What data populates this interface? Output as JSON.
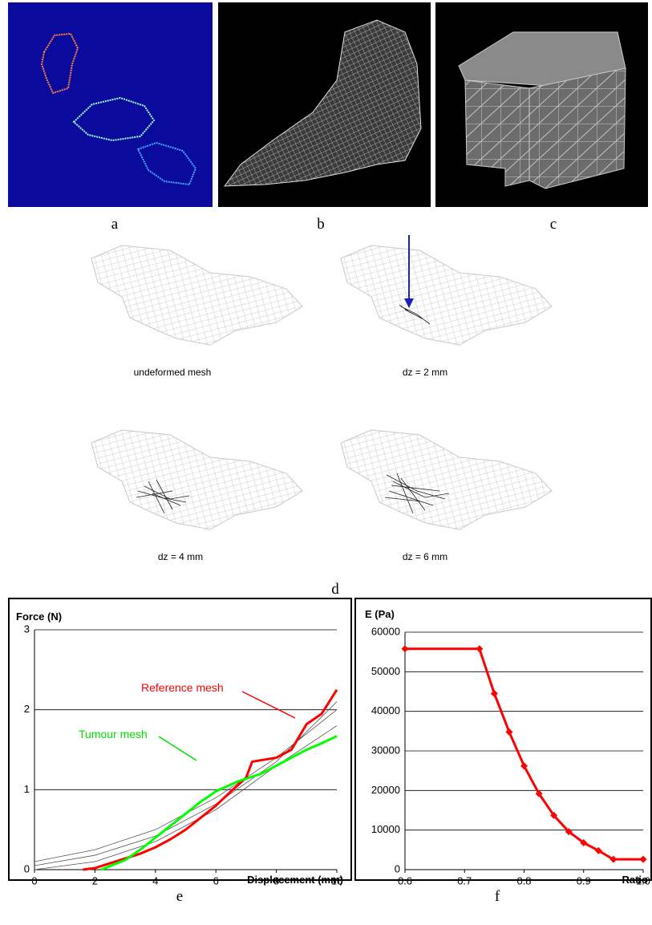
{
  "panel_labels": [
    "a",
    "b",
    "c",
    "d",
    "e",
    "f"
  ],
  "mesh_captions": [
    "undeformed mesh",
    "dz = 2 mm",
    "dz = 4 mm",
    "dz = 6 mm"
  ],
  "chart_data": [
    {
      "type": "line",
      "y_label": "Force (N)",
      "x_label": "Displacement (mm)",
      "xlim": [
        0,
        10
      ],
      "xticks": [
        0,
        2,
        4,
        6,
        8,
        10
      ],
      "ylim": [
        0,
        3
      ],
      "yticks": [
        0,
        1,
        2,
        3
      ],
      "grid": true,
      "annotations": [
        "Reference mesh",
        "Tumour mesh"
      ],
      "series": [
        {
          "color": "#555555",
          "x": [
            0,
            2,
            4,
            6,
            8,
            10
          ],
          "values": [
            0.1,
            0.25,
            0.5,
            0.9,
            1.4,
            2.0
          ]
        },
        {
          "color": "#555555",
          "x": [
            0,
            2,
            4,
            6,
            8,
            10
          ],
          "values": [
            0.05,
            0.18,
            0.42,
            0.82,
            1.35,
            2.1
          ]
        },
        {
          "color": "#555555",
          "x": [
            0,
            2,
            4,
            6,
            8,
            10
          ],
          "values": [
            0,
            0.1,
            0.35,
            0.75,
            1.3,
            1.8
          ]
        },
        {
          "name": "Reference mesh",
          "color": "#ff0000",
          "x": [
            1.6,
            2,
            2.5,
            3,
            3.5,
            4,
            4.5,
            5,
            5.5,
            6,
            6.5,
            7,
            7.2,
            8,
            8.5,
            9,
            9.5,
            10
          ],
          "values": [
            0,
            0.02,
            0.08,
            0.14,
            0.2,
            0.28,
            0.38,
            0.5,
            0.65,
            0.8,
            0.98,
            1.15,
            1.35,
            1.4,
            1.5,
            1.82,
            1.95,
            2.25
          ]
        },
        {
          "name": "Tumour mesh",
          "color": "#00ff00",
          "x": [
            2.2,
            3,
            3.5,
            4,
            4.5,
            5,
            5.5,
            6,
            6.7,
            7.5,
            8,
            8.5,
            9,
            9.5,
            10
          ],
          "values": [
            0,
            0.12,
            0.25,
            0.4,
            0.55,
            0.7,
            0.85,
            0.98,
            1.1,
            1.2,
            1.3,
            1.4,
            1.5,
            1.58,
            1.67
          ]
        }
      ]
    },
    {
      "type": "line",
      "y_label": "E (Pa)",
      "x_label": "Ratio",
      "xlim": [
        0.6,
        1
      ],
      "xticks": [
        0.6,
        0.7,
        0.8,
        0.9,
        {
          "value": 1,
          "label": "1.0"
        }
      ],
      "ylim": [
        0,
        60000
      ],
      "yticks": [
        0,
        10000,
        20000,
        30000,
        40000,
        50000,
        60000
      ],
      "grid": true,
      "series": [
        {
          "color": "#ff0000",
          "marker": "diamond",
          "x": [
            0.6,
            0.725,
            0.75,
            0.775,
            0.8,
            0.825,
            0.85,
            0.875,
            0.9,
            0.925,
            0.95,
            1.0
          ],
          "values": [
            55800,
            55800,
            44500,
            34800,
            26200,
            19200,
            13700,
            9600,
            6800,
            4800,
            2600,
            2600
          ]
        }
      ]
    }
  ]
}
